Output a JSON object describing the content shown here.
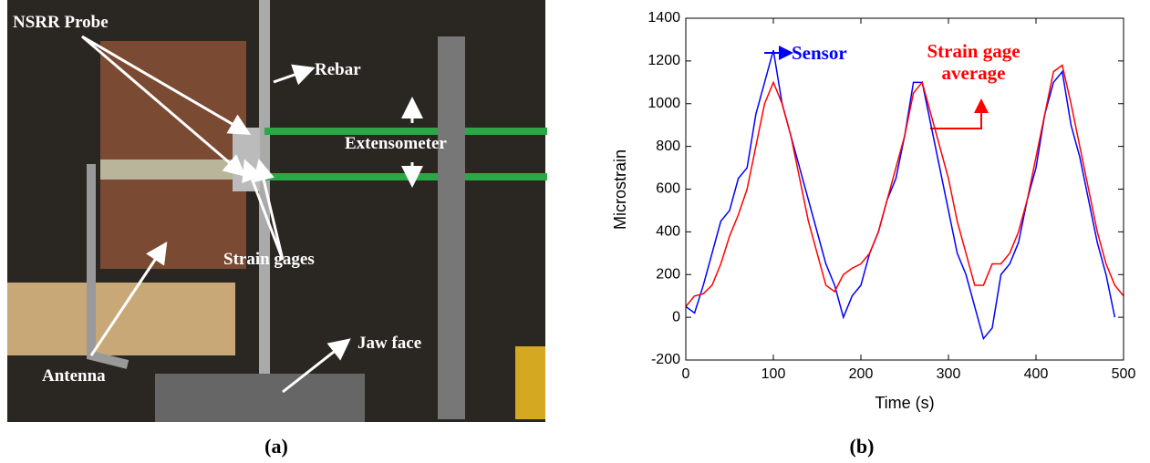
{
  "photo": {
    "labels": [
      "NSRR Probe",
      "Rebar",
      "Extensometer",
      "Strain gages",
      "Jaw face",
      "Antenna"
    ]
  },
  "captions": [
    "(a)",
    "(b)"
  ],
  "chart_data": {
    "type": "line",
    "xlabel": "Time (s)",
    "ylabel": "Microstrain",
    "x": [
      0,
      10,
      20,
      30,
      40,
      50,
      60,
      70,
      80,
      90,
      100,
      110,
      120,
      130,
      140,
      150,
      160,
      170,
      180,
      190,
      200,
      210,
      220,
      230,
      240,
      250,
      260,
      270,
      280,
      290,
      300,
      310,
      320,
      330,
      340,
      350,
      360,
      370,
      380,
      390,
      400,
      410,
      420,
      430,
      440,
      450,
      460,
      470,
      480,
      490,
      500
    ],
    "series": [
      {
        "name": "Sensor",
        "color": "#0000ff",
        "values": [
          50,
          20,
          150,
          300,
          450,
          500,
          650,
          700,
          950,
          1100,
          1250,
          1000,
          850,
          700,
          550,
          400,
          250,
          150,
          0,
          100,
          150,
          300,
          400,
          550,
          650,
          850,
          1100,
          1100,
          900,
          700,
          500,
          300,
          200,
          50,
          -100,
          -50,
          200,
          250,
          350,
          550,
          700,
          950,
          1100,
          1150,
          900,
          750,
          550,
          350,
          200,
          0,
          null
        ]
      },
      {
        "name": "Strain gage average",
        "color": "#ff0000",
        "values": [
          50,
          100,
          110,
          150,
          250,
          380,
          480,
          600,
          800,
          1000,
          1100,
          1000,
          850,
          650,
          450,
          300,
          150,
          120,
          200,
          230,
          250,
          300,
          400,
          550,
          700,
          850,
          1050,
          1100,
          950,
          800,
          650,
          450,
          300,
          150,
          150,
          250,
          250,
          300,
          400,
          550,
          750,
          950,
          1150,
          1180,
          1000,
          800,
          600,
          400,
          250,
          150,
          100
        ]
      }
    ],
    "xlim": [
      0,
      500
    ],
    "xticks": [
      0,
      100,
      200,
      300,
      400,
      500
    ],
    "ylim": [
      -200,
      1400
    ],
    "yticks": [
      -200,
      0,
      200,
      400,
      600,
      800,
      1000,
      1200,
      1400
    ]
  }
}
